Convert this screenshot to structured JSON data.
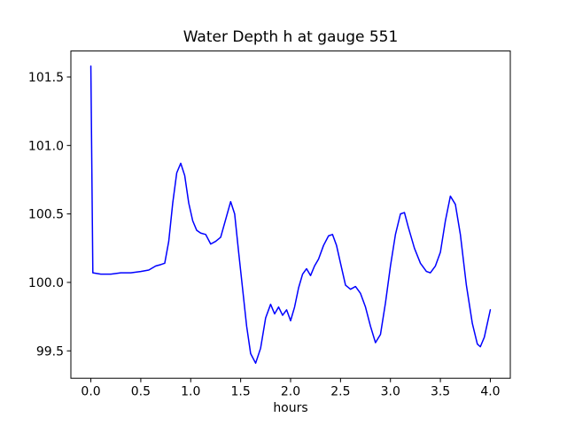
{
  "chart_data": {
    "type": "line",
    "title": "Water Depth h at gauge 551",
    "xlabel": "hours",
    "ylabel": "",
    "xlim": [
      -0.2,
      4.2
    ],
    "ylim": [
      99.3,
      101.69
    ],
    "xticks": [
      0.0,
      0.5,
      1.0,
      1.5,
      2.0,
      2.5,
      3.0,
      3.5,
      4.0
    ],
    "yticks": [
      99.5,
      100.0,
      100.5,
      101.0,
      101.5
    ],
    "grid": false,
    "legend": "none",
    "line_color": "#0000ff",
    "background": "#ffffff",
    "series": [
      {
        "name": "water depth h at gauge 551",
        "x": [
          0.0,
          0.02,
          0.1,
          0.2,
          0.3,
          0.4,
          0.5,
          0.58,
          0.65,
          0.7,
          0.74,
          0.78,
          0.82,
          0.86,
          0.9,
          0.94,
          0.98,
          1.02,
          1.06,
          1.1,
          1.15,
          1.2,
          1.25,
          1.3,
          1.35,
          1.4,
          1.44,
          1.48,
          1.52,
          1.56,
          1.6,
          1.65,
          1.7,
          1.75,
          1.8,
          1.84,
          1.88,
          1.92,
          1.96,
          2.0,
          2.04,
          2.08,
          2.12,
          2.16,
          2.2,
          2.24,
          2.28,
          2.33,
          2.38,
          2.42,
          2.46,
          2.5,
          2.55,
          2.6,
          2.65,
          2.7,
          2.75,
          2.8,
          2.85,
          2.9,
          2.95,
          3.0,
          3.05,
          3.1,
          3.14,
          3.18,
          3.24,
          3.3,
          3.36,
          3.4,
          3.45,
          3.5,
          3.55,
          3.6,
          3.65,
          3.7,
          3.76,
          3.82,
          3.87,
          3.9,
          3.94,
          4.0
        ],
        "y": [
          101.58,
          100.07,
          100.06,
          100.06,
          100.07,
          100.07,
          100.08,
          100.09,
          100.12,
          100.13,
          100.14,
          100.3,
          100.58,
          100.8,
          100.87,
          100.78,
          100.58,
          100.45,
          100.38,
          100.36,
          100.35,
          100.28,
          100.3,
          100.33,
          100.46,
          100.59,
          100.5,
          100.22,
          99.95,
          99.68,
          99.48,
          99.41,
          99.52,
          99.74,
          99.84,
          99.77,
          99.82,
          99.76,
          99.8,
          99.72,
          99.82,
          99.96,
          100.06,
          100.1,
          100.05,
          100.12,
          100.17,
          100.27,
          100.34,
          100.35,
          100.27,
          100.14,
          99.98,
          99.95,
          99.97,
          99.92,
          99.82,
          99.68,
          99.56,
          99.62,
          99.85,
          100.12,
          100.35,
          100.5,
          100.51,
          100.4,
          100.25,
          100.14,
          100.08,
          100.07,
          100.12,
          100.22,
          100.45,
          100.63,
          100.57,
          100.35,
          99.98,
          99.7,
          99.55,
          99.53,
          99.6,
          99.8
        ]
      }
    ]
  }
}
